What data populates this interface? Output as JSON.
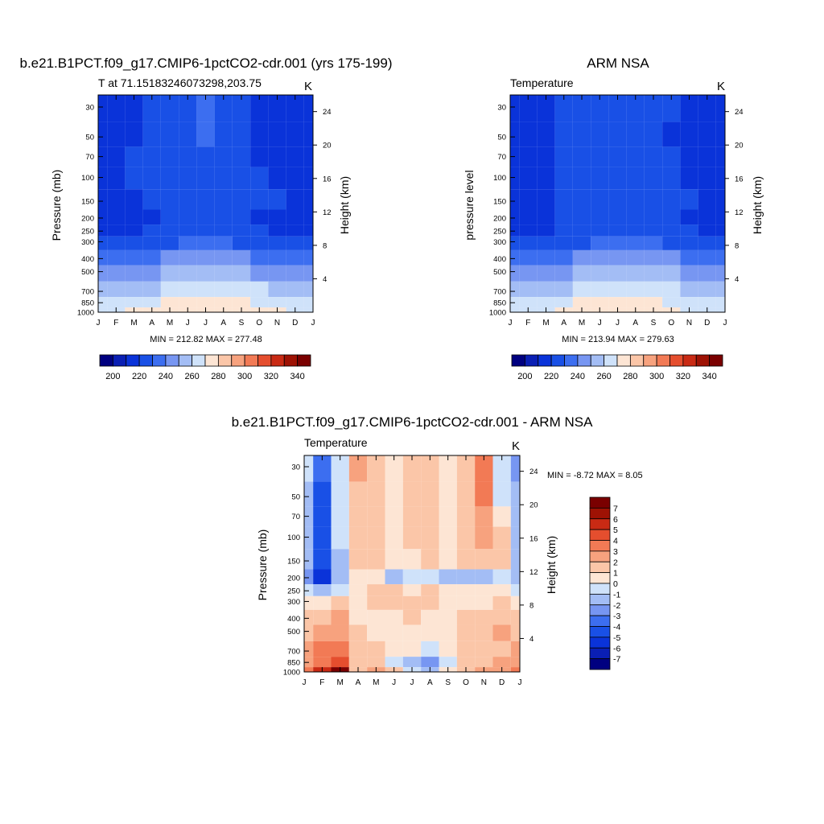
{
  "months": [
    "J",
    "F",
    "M",
    "A",
    "M",
    "J",
    "J",
    "A",
    "S",
    "O",
    "N",
    "D",
    "J"
  ],
  "pressure_ticks": [
    30,
    50,
    70,
    100,
    150,
    200,
    250,
    300,
    400,
    500,
    700,
    850,
    1000
  ],
  "height_ticks": [
    4,
    8,
    12,
    16,
    20,
    24
  ],
  "colors": {
    "abs_levels": [
      "#000080",
      "#0a1fb4",
      "#0a33d9",
      "#1950e6",
      "#3c6ef0",
      "#7796f2",
      "#a3bdf5",
      "#cfe2fa",
      "#fde5d4",
      "#fbc6a8",
      "#f7a27e",
      "#f27a55",
      "#e54e2e",
      "#c92a14",
      "#9e1204",
      "#7a0000"
    ],
    "diff_levels": [
      "#000080",
      "#0a1fb4",
      "#0a33d9",
      "#1950e6",
      "#3c6ef0",
      "#7796f2",
      "#a3bdf5",
      "#cfe2fa",
      "#fde5d4",
      "#fbc6a8",
      "#f7a27e",
      "#f27a55",
      "#e54e2e",
      "#c92a14",
      "#9e1204",
      "#7a0000"
    ]
  },
  "panels": {
    "model": {
      "title": "b.e21.B1PCT.f09_g17.CMIP6-1pctCO2-cdr.001 (yrs 175-199)",
      "subtitle": "T at 71.15183246073298,203.75",
      "units": "K",
      "ylabel": "Pressure (mb)",
      "ylabel_right": "Height (km)",
      "minmax": "MIN = 212.82 MAX = 277.48",
      "colorbar_labels": [
        "200",
        "220",
        "240",
        "260",
        "280",
        "300",
        "320",
        "340"
      ]
    },
    "obs": {
      "title": "ARM NSA",
      "subtitle": "Temperature",
      "units": "K",
      "ylabel": "pressure level",
      "ylabel_right": "Height (km)",
      "minmax": "MIN = 213.94 MAX = 279.63",
      "colorbar_labels": [
        "200",
        "220",
        "240",
        "260",
        "280",
        "300",
        "320",
        "340"
      ]
    },
    "diff": {
      "title": "b.e21.B1PCT.f09_g17.CMIP6-1pctCO2-cdr.001 - ARM NSA",
      "subtitle": "Temperature",
      "units": "K",
      "ylabel": "Pressure (mb)",
      "ylabel_right": "Height (km)",
      "minmax": "MIN =  -8.72 MAX =   8.05",
      "colorbar_labels": [
        "7",
        "6",
        "5",
        "4",
        "3",
        "2",
        "1",
        "0",
        "-1",
        "-2",
        "-3",
        "-4",
        "-5",
        "-6",
        "-7"
      ]
    }
  },
  "chart_data": [
    {
      "type": "heatmap",
      "title": "b.e21.B1PCT.f09_g17.CMIP6-1pctCO2-cdr.001 (yrs 175-199)",
      "x": [
        "J",
        "F",
        "M",
        "A",
        "M",
        "J",
        "J",
        "A",
        "S",
        "O",
        "N",
        "D",
        "J"
      ],
      "y": [
        30,
        50,
        70,
        100,
        150,
        200,
        250,
        300,
        400,
        500,
        700,
        850,
        1000
      ],
      "xlabel": "",
      "ylabel": "Pressure (mb)",
      "z": [
        [
          215,
          215,
          218,
          220,
          222,
          228,
          232,
          226,
          222,
          218,
          215,
          215,
          215
        ],
        [
          214,
          214,
          218,
          222,
          225,
          228,
          230,
          226,
          222,
          217,
          214,
          214,
          214
        ],
        [
          214,
          214,
          220,
          223,
          225,
          227,
          228,
          226,
          222,
          218,
          214,
          214,
          214
        ],
        [
          214,
          214,
          220,
          224,
          225,
          226,
          226,
          225,
          223,
          220,
          214,
          214,
          214
        ],
        [
          214,
          214,
          216,
          222,
          225,
          226,
          226,
          225,
          224,
          222,
          220,
          216,
          214
        ],
        [
          213,
          213,
          214,
          218,
          223,
          226,
          227,
          226,
          223,
          219,
          216,
          214,
          213
        ],
        [
          214,
          214,
          214,
          222,
          226,
          228,
          229,
          228,
          225,
          222,
          219,
          216,
          214
        ],
        [
          221,
          221,
          223,
          226,
          229,
          230,
          231,
          230,
          229,
          227,
          225,
          222,
          221
        ],
        [
          236,
          236,
          236,
          238,
          240,
          242,
          244,
          243,
          241,
          239,
          237,
          236,
          236
        ],
        [
          246,
          246,
          246,
          248,
          250,
          253,
          255,
          254,
          252,
          249,
          247,
          246,
          246
        ],
        [
          256,
          256,
          256,
          258,
          262,
          266,
          268,
          267,
          264,
          260,
          257,
          256,
          256
        ],
        [
          262,
          262,
          262,
          265,
          270,
          275,
          277,
          276,
          272,
          267,
          263,
          262,
          262
        ],
        [
          268,
          268,
          270,
          272,
          276,
          278,
          278,
          278,
          276,
          274,
          270,
          268,
          268
        ]
      ],
      "colorbar_levels": [
        200,
        345,
        5
      ],
      "zlim": [
        212.82,
        277.48
      ]
    },
    {
      "type": "heatmap",
      "title": "ARM NSA",
      "x": [
        "J",
        "F",
        "M",
        "A",
        "M",
        "J",
        "J",
        "A",
        "S",
        "O",
        "N",
        "D",
        "J"
      ],
      "y": [
        30,
        50,
        70,
        100,
        150,
        200,
        250,
        300,
        400,
        500,
        700,
        850,
        1000
      ],
      "xlabel": "",
      "ylabel": "pressure level",
      "z": [
        [
          216,
          216,
          218,
          221,
          223,
          226,
          228,
          226,
          223,
          220,
          215,
          214,
          216
        ],
        [
          216,
          216,
          219,
          222,
          224,
          227,
          227,
          226,
          223,
          219,
          215,
          214,
          216
        ],
        [
          215,
          215,
          219,
          223,
          225,
          226,
          226,
          226,
          224,
          220,
          215,
          214,
          215
        ],
        [
          215,
          215,
          219,
          223,
          225,
          225,
          225,
          225,
          224,
          222,
          216,
          214,
          215
        ],
        [
          215,
          215,
          217,
          222,
          225,
          226,
          226,
          225,
          224,
          223,
          220,
          216,
          215
        ],
        [
          214,
          214,
          216,
          221,
          224,
          226,
          226,
          225,
          224,
          222,
          219,
          216,
          214
        ],
        [
          216,
          216,
          218,
          223,
          226,
          228,
          228,
          228,
          226,
          223,
          220,
          218,
          216
        ],
        [
          222,
          222,
          223,
          226,
          229,
          230,
          231,
          231,
          230,
          228,
          225,
          222,
          222
        ],
        [
          236,
          236,
          236,
          238,
          241,
          243,
          245,
          244,
          242,
          240,
          238,
          236,
          236
        ],
        [
          246,
          246,
          246,
          248,
          251,
          254,
          256,
          255,
          253,
          250,
          247,
          246,
          246
        ],
        [
          256,
          256,
          256,
          259,
          263,
          267,
          269,
          268,
          265,
          261,
          258,
          256,
          256
        ],
        [
          264,
          264,
          264,
          267,
          272,
          277,
          279,
          278,
          274,
          269,
          265,
          264,
          264
        ],
        [
          268,
          268,
          268,
          270,
          276,
          279,
          279,
          279,
          276,
          272,
          268,
          268,
          268
        ]
      ],
      "colorbar_levels": [
        200,
        345,
        5
      ],
      "zlim": [
        213.94,
        279.63
      ]
    },
    {
      "type": "heatmap",
      "title": "b.e21.B1PCT.f09_g17.CMIP6-1pctCO2-cdr.001 - ARM NSA",
      "x": [
        "J",
        "F",
        "M",
        "A",
        "M",
        "J",
        "J",
        "A",
        "S",
        "O",
        "N",
        "D",
        "J"
      ],
      "y": [
        30,
        50,
        70,
        100,
        150,
        200,
        250,
        300,
        400,
        500,
        700,
        850,
        1000
      ],
      "xlabel": "",
      "ylabel": "Pressure (mb)",
      "z": [
        [
          -1,
          -4,
          -1,
          2,
          0.5,
          -0.5,
          0.5,
          0.5,
          -0.5,
          1,
          3,
          -1,
          -3
        ],
        [
          -2,
          -5,
          -1.5,
          1,
          0.5,
          -0.5,
          0.5,
          0.5,
          -0.5,
          1,
          2.5,
          -1,
          -2.5
        ],
        [
          -2,
          -5.5,
          -1.5,
          1,
          0.5,
          -0.5,
          0.5,
          0.5,
          -0.5,
          1,
          2,
          -0.5,
          -2
        ],
        [
          -2,
          -5,
          -1.5,
          0.5,
          0.5,
          -0.5,
          0.5,
          0.5,
          -0.5,
          1,
          1.5,
          0.5,
          -2
        ],
        [
          -2,
          -5,
          -2,
          0.5,
          0.5,
          -0.5,
          -0.5,
          0.5,
          -0.5,
          0.5,
          1,
          0.5,
          -2
        ],
        [
          -3,
          -6.5,
          -2.5,
          -0.5,
          -0.5,
          -2,
          -1,
          -1,
          -2,
          -2.5,
          -2,
          -1,
          -2
        ],
        [
          -1.5,
          -2,
          -1.5,
          -0.5,
          0.5,
          0.5,
          -0.5,
          1,
          -0.5,
          -0.5,
          -0.5,
          -0.5,
          -1.5
        ],
        [
          -0.5,
          -0.5,
          0.5,
          -0.5,
          0.5,
          0.5,
          0.5,
          0.5,
          -0.5,
          -0.5,
          -0.5,
          0.5,
          -0.5
        ],
        [
          0.5,
          1,
          1.5,
          -0.5,
          -0.5,
          -0.5,
          0.5,
          -0.5,
          -0.5,
          0.5,
          1,
          1,
          0.5
        ],
        [
          1,
          1.5,
          2,
          0.5,
          -0.5,
          -0.5,
          -0.5,
          -0.5,
          -0.5,
          0.5,
          1,
          1.5,
          1
        ],
        [
          2,
          2.5,
          3,
          0.5,
          0.5,
          -0.5,
          -0.5,
          -1,
          -0.5,
          0.5,
          1,
          1,
          2
        ],
        [
          2,
          3,
          4,
          1,
          1,
          -1,
          -2,
          -3,
          -1,
          0.5,
          1,
          1.5,
          2
        ],
        [
          3,
          5,
          8,
          1,
          2,
          0.5,
          -1,
          -2,
          -0.5,
          1,
          2,
          2,
          3
        ]
      ],
      "colorbar_levels": [
        -7,
        7,
        1
      ],
      "zlim": [
        -8.72,
        8.05
      ]
    }
  ]
}
